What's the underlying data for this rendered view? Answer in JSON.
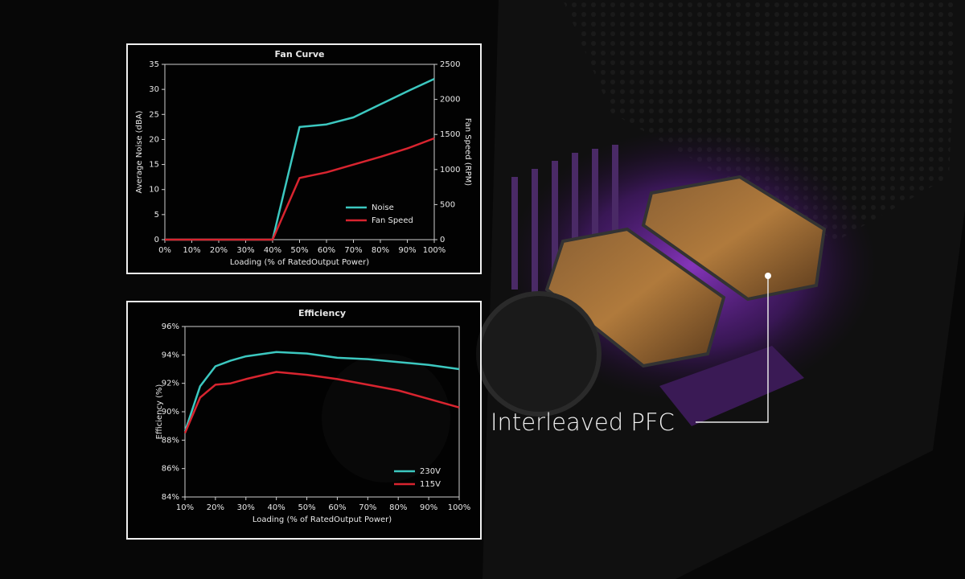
{
  "chart_data": [
    {
      "type": "line",
      "title": "Fan Curve",
      "x": [
        0,
        10,
        20,
        30,
        40,
        50,
        60,
        70,
        80,
        90,
        100
      ],
      "xlim": [
        0,
        100
      ],
      "xticks": [
        {
          "value": 0,
          "label": "0%"
        },
        {
          "value": 10,
          "label": "10%"
        },
        {
          "value": 20,
          "label": "20%"
        },
        {
          "value": 30,
          "label": "30%"
        },
        {
          "value": 40,
          "label": "40%"
        },
        {
          "value": 50,
          "label": "50%"
        },
        {
          "value": 60,
          "label": "60%"
        },
        {
          "value": 70,
          "label": "70%"
        },
        {
          "value": 80,
          "label": "80%"
        },
        {
          "value": 90,
          "label": "90%"
        },
        {
          "value": 100,
          "label": "100%"
        }
      ],
      "ylim": [
        0,
        35
      ],
      "yticks": [
        0,
        5,
        10,
        15,
        20,
        25,
        30,
        35
      ],
      "y2lim": [
        0,
        2500
      ],
      "y2ticks": [
        0,
        500,
        1000,
        1500,
        2000,
        2500
      ],
      "x_label": "Loading (% of RatedOutput Power)",
      "y_label": "Average Noise (dBA)",
      "y2_label": "Fan Speed (RPM)",
      "series": [
        {
          "name": "Noise",
          "color": "#3cc8c0",
          "values": [
            0,
            0,
            0,
            0,
            0,
            22.5,
            23,
            24.4,
            27,
            29.6,
            32.1
          ]
        },
        {
          "name": "Fan Speed",
          "color": "#d8242f",
          "axis": "y2",
          "values": [
            0,
            0,
            0,
            0,
            0,
            880,
            960,
            1070,
            1180,
            1300,
            1445
          ]
        }
      ]
    },
    {
      "type": "line",
      "title": "Efficiency",
      "x": [
        10,
        15,
        20,
        25,
        30,
        40,
        50,
        60,
        70,
        80,
        90,
        100
      ],
      "xlim": [
        10,
        100
      ],
      "xticks": [
        {
          "value": 10,
          "label": "10%"
        },
        {
          "value": 20,
          "label": "20%"
        },
        {
          "value": 30,
          "label": "30%"
        },
        {
          "value": 40,
          "label": "40%"
        },
        {
          "value": 50,
          "label": "50%"
        },
        {
          "value": 60,
          "label": "60%"
        },
        {
          "value": 70,
          "label": "70%"
        },
        {
          "value": 80,
          "label": "80%"
        },
        {
          "value": 90,
          "label": "90%"
        },
        {
          "value": 100,
          "label": "100%"
        }
      ],
      "ylim": [
        84,
        96
      ],
      "yticks": [
        {
          "value": 84,
          "label": "84%"
        },
        {
          "value": 86,
          "label": "86%"
        },
        {
          "value": 88,
          "label": "88%"
        },
        {
          "value": 90,
          "label": "90%"
        },
        {
          "value": 92,
          "label": "92%"
        },
        {
          "value": 94,
          "label": "94%"
        },
        {
          "value": 96,
          "label": "96%"
        }
      ],
      "x_label": "Loading (% of RatedOutput Power)",
      "y_label": "Efficiency (%)",
      "series": [
        {
          "name": "230V",
          "color": "#3cc8c0",
          "values": [
            88.6,
            91.8,
            93.2,
            93.6,
            93.9,
            94.2,
            94.1,
            93.8,
            93.7,
            93.5,
            93.3,
            93.0
          ]
        },
        {
          "name": "115V",
          "color": "#d8242f",
          "values": [
            88.5,
            91.0,
            91.9,
            92.0,
            92.3,
            92.8,
            92.6,
            92.3,
            91.9,
            91.5,
            90.9,
            90.3
          ]
        }
      ]
    }
  ],
  "callout": "Interleaved PFC"
}
